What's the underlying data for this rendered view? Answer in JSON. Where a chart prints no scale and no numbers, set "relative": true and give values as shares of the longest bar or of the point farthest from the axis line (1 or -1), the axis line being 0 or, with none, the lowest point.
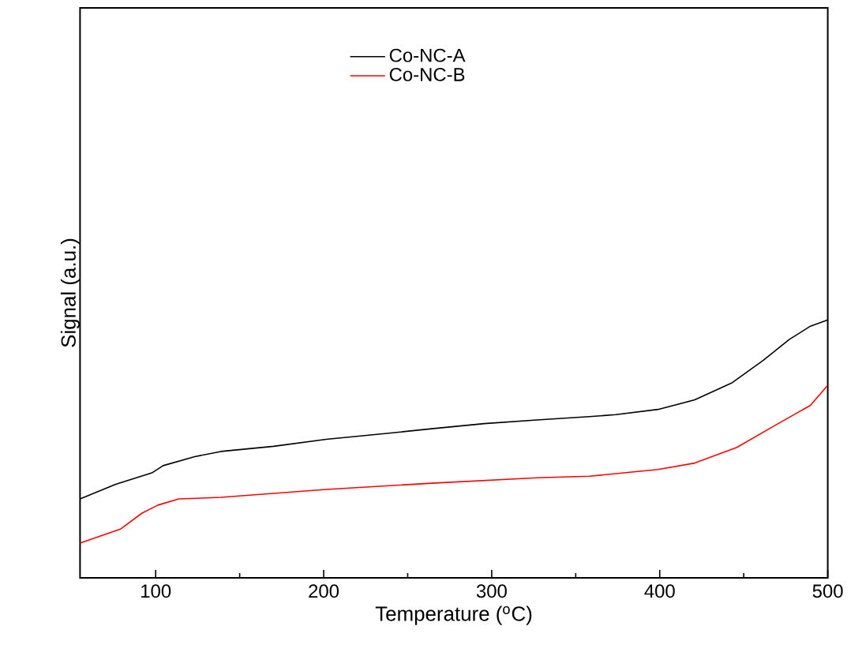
{
  "chart_data": {
    "type": "line",
    "relative": true,
    "xlabel": "Temperature ($^{o}$C)",
    "ylabel": "Signal (a.u.)",
    "xlim": [
      55,
      500
    ],
    "xticks": [
      100,
      200,
      300,
      400,
      500
    ],
    "legend": "top",
    "line_style": "solid",
    "series": [
      {
        "name": "Co-NC-A",
        "color": "#000000",
        "x": [
          55,
          76.2,
          98.1,
          104.4,
          123.2,
          138.8,
          170.2,
          201.5,
          232.8,
          264.2,
          295.5,
          326.8,
          358.1,
          373.8,
          398.9,
          420.8,
          442.7,
          461.5,
          477.2,
          489.7,
          500
        ],
        "values": [
          0.306,
          0.363,
          0.408,
          0.435,
          0.47,
          0.49,
          0.51,
          0.537,
          0.557,
          0.578,
          0.598,
          0.612,
          0.625,
          0.633,
          0.653,
          0.69,
          0.755,
          0.843,
          0.925,
          0.976,
          1.0
        ]
      },
      {
        "name": "Co-NC-B",
        "color": "#ff0000",
        "x": [
          55,
          79.3,
          91.9,
          101.3,
          113.8,
          138.8,
          201.5,
          264.2,
          326.8,
          358.1,
          398.9,
          420.8,
          445.9,
          467.8,
          489.7,
          500
        ],
        "values": [
          0.135,
          0.19,
          0.251,
          0.282,
          0.306,
          0.312,
          0.343,
          0.367,
          0.388,
          0.394,
          0.42,
          0.445,
          0.506,
          0.588,
          0.669,
          0.747
        ]
      }
    ]
  }
}
